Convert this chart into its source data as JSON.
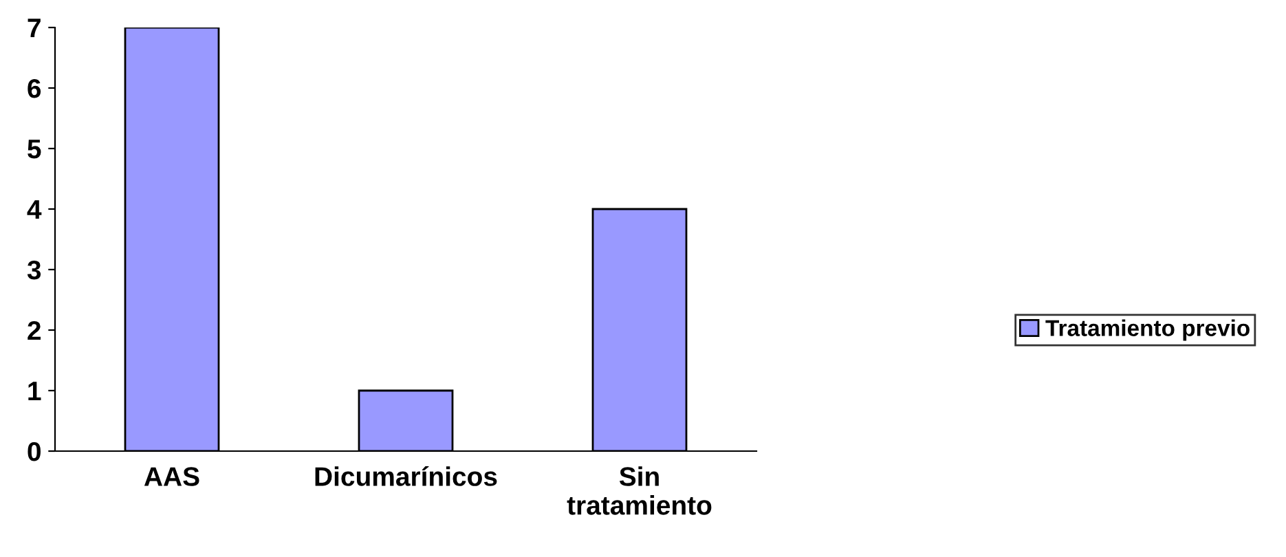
{
  "chart_data": {
    "type": "bar",
    "categories": [
      "AAS",
      "Dicumarínicos",
      "Sin\ntratamiento"
    ],
    "series": [
      {
        "name": "Tratamiento previo",
        "color": "#9999ff",
        "values": [
          7,
          1,
          4
        ]
      }
    ],
    "ylim": [
      0,
      7
    ],
    "yticks": [
      0,
      1,
      2,
      3,
      4,
      5,
      6,
      7
    ],
    "grid": false,
    "legend": "right"
  }
}
